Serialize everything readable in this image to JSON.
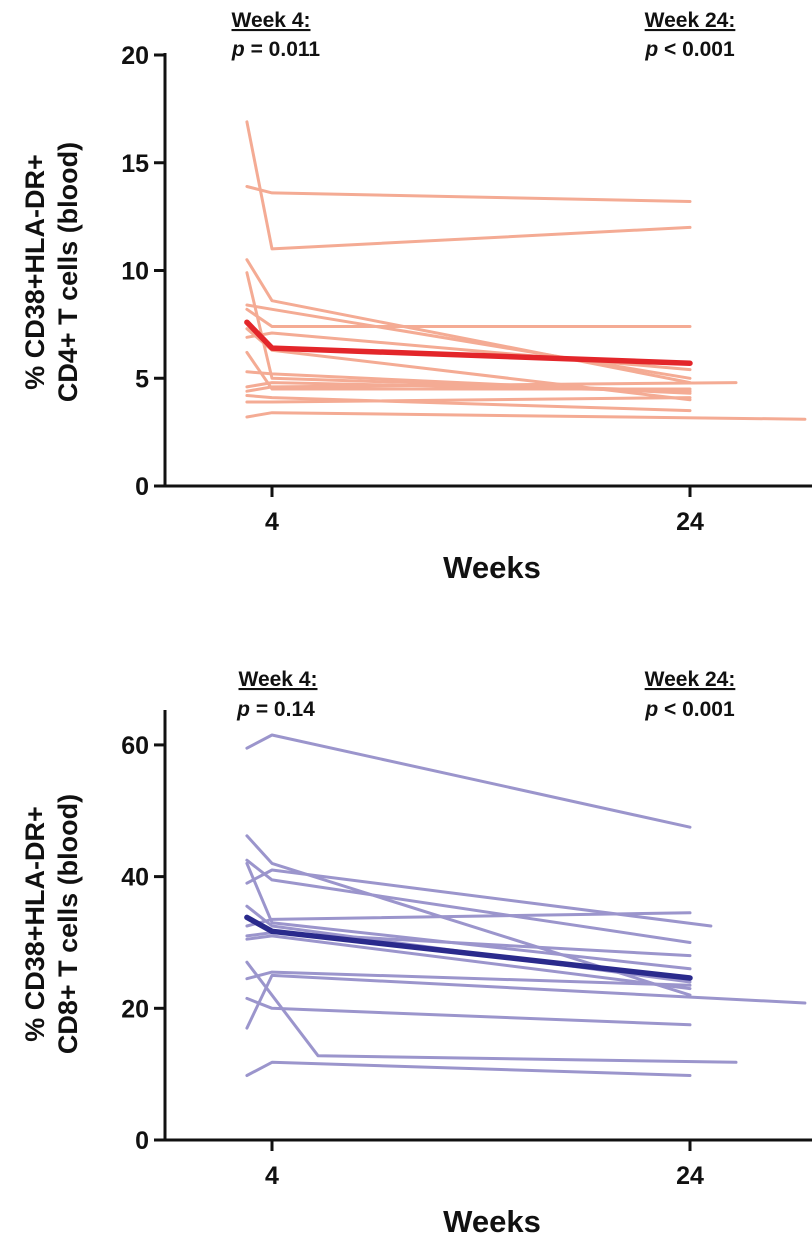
{
  "chart_data": [
    {
      "type": "line",
      "xlabel": "Weeks",
      "ylabel_lines": [
        "% CD38+HLA-DR+",
        "CD4+ T cells (blood)"
      ],
      "ylim": [
        0,
        20
      ],
      "yticks": [
        "0",
        "5",
        "10",
        "15",
        "20"
      ],
      "xticks": [
        "4",
        "24"
      ],
      "annotations": [
        {
          "heading": "Week 4:",
          "p_symbol": "p",
          "p_rest": " = 0.011"
        },
        {
          "heading": "Week 24:",
          "p_symbol": "p",
          "p_rest": " < 0.001"
        }
      ],
      "colors": {
        "individual": "#f4ab94",
        "mean": "#e3262a"
      },
      "individual_series": [
        [
          [
            -1.2,
            16.9
          ],
          [
            0,
            11.0
          ],
          [
            20,
            12.0
          ]
        ],
        [
          [
            -1.2,
            13.9
          ],
          [
            0,
            13.6
          ],
          [
            20,
            13.2
          ]
        ],
        [
          [
            -1.2,
            10.5
          ],
          [
            0,
            8.6
          ],
          [
            20,
            4.8
          ]
        ],
        [
          [
            -1.2,
            9.9
          ],
          [
            0,
            5.0
          ],
          [
            20,
            4.4
          ]
        ],
        [
          [
            -1.2,
            8.4
          ],
          [
            0,
            8.2
          ],
          [
            20,
            5.0
          ]
        ],
        [
          [
            -1.2,
            8.2
          ],
          [
            0,
            7.4
          ],
          [
            20,
            7.4
          ]
        ],
        [
          [
            -1.2,
            7.3
          ],
          [
            0,
            6.3
          ],
          [
            20,
            4.0
          ]
        ],
        [
          [
            -1.2,
            6.9
          ],
          [
            0,
            7.1
          ],
          [
            20,
            5.4
          ]
        ],
        [
          [
            -1.2,
            6.2
          ],
          [
            0,
            4.5
          ],
          [
            20,
            4.5
          ]
        ],
        [
          [
            -1.2,
            5.3
          ],
          [
            0,
            5.2
          ],
          [
            20,
            4.3
          ]
        ],
        [
          [
            -1.2,
            4.6
          ],
          [
            0,
            4.8
          ],
          [
            20,
            4.4
          ]
        ],
        [
          [
            -1.2,
            4.4
          ],
          [
            0,
            4.6
          ],
          [
            22.2,
            4.8
          ]
        ],
        [
          [
            -1.2,
            4.2
          ],
          [
            0,
            4.1
          ],
          [
            20,
            3.5
          ]
        ],
        [
          [
            -1.2,
            3.9
          ],
          [
            0,
            3.9
          ],
          [
            20,
            4.1
          ]
        ],
        [
          [
            -1.2,
            3.2
          ],
          [
            0,
            3.4
          ],
          [
            25.5,
            3.1
          ]
        ]
      ],
      "mean_series": [
        [
          -1.2,
          7.6
        ],
        [
          0,
          6.4
        ],
        [
          20,
          5.7
        ]
      ]
    },
    {
      "type": "line",
      "xlabel": "Weeks",
      "ylabel_lines": [
        "% CD38+HLA-DR+",
        "CD8+ T cells (blood)"
      ],
      "ylim": [
        0,
        65
      ],
      "yticks": [
        "0",
        "20",
        "40",
        "60"
      ],
      "xticks": [
        "4",
        "24"
      ],
      "annotations": [
        {
          "heading": "Week 4:",
          "p_symbol": "p",
          "p_rest": " = 0.14"
        },
        {
          "heading": "Week 24:",
          "p_symbol": "p",
          "p_rest": " < 0.001"
        }
      ],
      "colors": {
        "individual": "#9b95cc",
        "mean": "#2a2a8c"
      },
      "individual_series": [
        [
          [
            -1.2,
            59.5
          ],
          [
            0,
            61.5
          ],
          [
            20,
            47.5
          ]
        ],
        [
          [
            -1.2,
            46.2
          ],
          [
            0,
            42.0
          ],
          [
            20,
            22.0
          ]
        ],
        [
          [
            -1.2,
            42.5
          ],
          [
            0,
            39.5
          ],
          [
            20,
            30.0
          ]
        ],
        [
          [
            -1.2,
            42.0
          ],
          [
            0,
            33.0
          ],
          [
            20,
            26.0
          ]
        ],
        [
          [
            -1.2,
            39.0
          ],
          [
            0,
            41.0
          ],
          [
            21.0,
            32.5
          ]
        ],
        [
          [
            -1.2,
            35.5
          ],
          [
            0,
            32.5
          ],
          [
            20,
            24.0
          ]
        ],
        [
          [
            -1.2,
            32.5
          ],
          [
            0,
            33.5
          ],
          [
            20,
            34.5
          ]
        ],
        [
          [
            -1.2,
            31.0
          ],
          [
            0,
            31.5
          ],
          [
            20,
            28.0
          ]
        ],
        [
          [
            -1.2,
            30.5
          ],
          [
            0,
            31.0
          ],
          [
            20,
            23.0
          ]
        ],
        [
          [
            -1.2,
            27.0
          ],
          [
            2.2,
            12.8
          ],
          [
            22.2,
            11.8
          ]
        ],
        [
          [
            -1.2,
            24.5
          ],
          [
            0,
            25.5
          ],
          [
            20,
            23.5
          ]
        ],
        [
          [
            -1.2,
            21.5
          ],
          [
            0,
            20.0
          ],
          [
            20,
            17.5
          ]
        ],
        [
          [
            -1.2,
            17.0
          ],
          [
            0,
            25.0
          ],
          [
            25.5,
            20.8
          ]
        ],
        [
          [
            -1.2,
            9.8
          ],
          [
            0,
            11.8
          ],
          [
            20,
            9.8
          ]
        ]
      ],
      "mean_series": [
        [
          -1.2,
          33.8
        ],
        [
          0,
          31.7
        ],
        [
          20,
          24.6
        ]
      ]
    }
  ]
}
